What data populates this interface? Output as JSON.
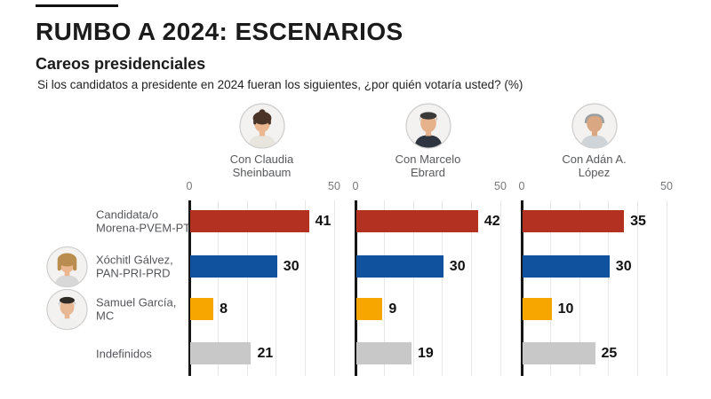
{
  "header": {
    "title": "RUMBO A 2024: ESCENARIOS",
    "subtitle": "Careos presidenciales",
    "question": "Si los candidatos a presidente en 2024 fueran los siguientes, ¿por quién votaría usted?  (%)"
  },
  "colors": {
    "morena_red": "#b23120",
    "pan_blue": "#11529e",
    "mc_orange": "#f7a600",
    "undecided_gray": "#c8c8c8",
    "axis_line": "#161616",
    "gridline": "#e7e7e7",
    "label_gray": "#58595b",
    "tick_gray": "#77787a"
  },
  "chart_data": {
    "type": "bar",
    "orientation": "horizontal",
    "title": "RUMBO A 2024: ESCENARIOS",
    "subtitle": "Careos presidenciales",
    "question": "Si los candidatos a presidente en 2024 fueran los siguientes, ¿por quién votaría usted?  (%)",
    "xlim": [
      0,
      50
    ],
    "x_ticks": [
      0,
      50
    ],
    "gridline_step": 10,
    "grid": true,
    "legend": false,
    "value_labels": true,
    "categories": [
      "Candidata/o Morena-PVEM-PT",
      "Xóchitl Gálvez, PAN-PRI-PRD",
      "Samuel García, MC",
      "Indefinidos"
    ],
    "bar_colors": [
      "#b23120",
      "#11529e",
      "#f7a600",
      "#c8c8c8"
    ],
    "panels": [
      {
        "title_lines": [
          "Con Claudia",
          "Sheinbaum"
        ],
        "values": [
          41,
          30,
          8,
          21
        ]
      },
      {
        "title_lines": [
          "Con Marcelo",
          "Ebrard"
        ],
        "values": [
          42,
          30,
          9,
          19
        ]
      },
      {
        "title_lines": [
          "Con Adán A.",
          "López"
        ],
        "values": [
          35,
          30,
          10,
          25
        ]
      }
    ]
  },
  "rows": [
    {
      "line1": "Candidata/o",
      "line2": "Morena-PVEM-PT",
      "avatar": null
    },
    {
      "line1": "Xóchitl Gálvez,",
      "line2": "PAN-PRI-PRD",
      "avatar": {
        "name": "xochitl-galvez-photo",
        "style": "wavy",
        "hair": "#b98d4f",
        "skin": "#eab791",
        "top": "#d8d8d8"
      }
    },
    {
      "line1": "Samuel García,",
      "line2": "MC",
      "avatar": {
        "name": "samuel-garcia-photo",
        "style": "short",
        "hair": "#2f2a26",
        "skin": "#e8b894",
        "top": "#f0f0ee"
      }
    },
    {
      "line1": "Indefinidos",
      "line2": "",
      "avatar": null
    }
  ],
  "panel_avatars": [
    {
      "name": "claudia-sheinbaum-photo",
      "style": "updo",
      "hair": "#4a3428",
      "skin": "#eab791",
      "top": "#e8e4de"
    },
    {
      "name": "marcelo-ebrard-photo",
      "style": "short",
      "hair": "#3c3a38",
      "skin": "#e6b28c",
      "top": "#2e3440"
    },
    {
      "name": "adan-a-lopez-photo",
      "style": "balding",
      "hair": "#9aa0a2",
      "skin": "#d9a781",
      "top": "#cfd4d8"
    }
  ],
  "tick_labels": [
    "0",
    "50"
  ]
}
